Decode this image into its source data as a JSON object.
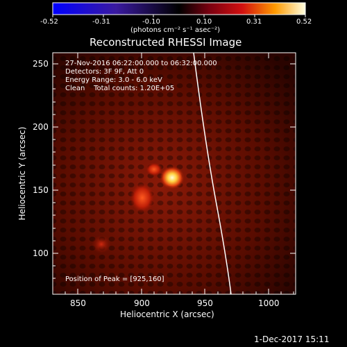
{
  "colorbar": {
    "tick_labels": [
      "-0.52",
      "-0.31",
      "-0.10",
      "0.10",
      "0.31",
      "0.52"
    ],
    "units_label": "(photons cm⁻² s⁻¹ asec⁻²)",
    "range": [
      -0.52,
      0.52
    ]
  },
  "title": "Reconstructed RHESSI Image",
  "info_lines": [
    "27-Nov-2016 06:22:00.000 to 06:32:00.000",
    "Detectors: 3F 9F, Att 0",
    "Energy Range: 3.0 - 6.0 keV",
    "Clean    Total counts: 1.20E+05"
  ],
  "peak_label": "Position of Peak = [925,160]",
  "x_axis": {
    "label": "Heliocentric X (arcsec)",
    "ticks": [
      "850",
      "900",
      "950",
      "1000"
    ],
    "range": [
      830,
      1022
    ]
  },
  "y_axis": {
    "label": "Heliocentric Y (arcsec)",
    "ticks": [
      "100",
      "150",
      "200",
      "250"
    ],
    "range": [
      67,
      260
    ]
  },
  "footer_date": "1-Dec-2017 15:11",
  "colors": {
    "background": "#000000",
    "limb": "#ffffff",
    "image_base": "#6b0e00"
  },
  "sources": [
    {
      "x": 925,
      "y": 160,
      "label": "peak"
    },
    {
      "x": 912,
      "y": 163
    },
    {
      "x": 901,
      "y": 146
    },
    {
      "x": 866,
      "y": 105
    }
  ]
}
